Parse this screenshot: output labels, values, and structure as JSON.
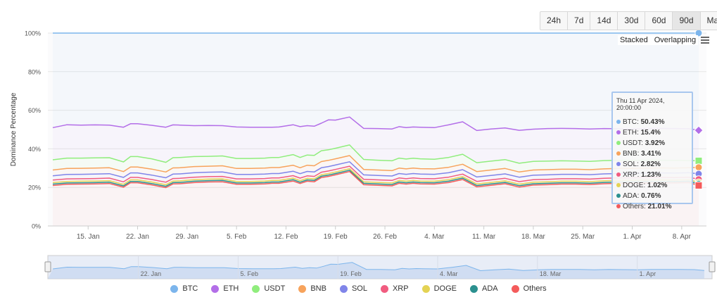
{
  "range_buttons": [
    {
      "label": "24h",
      "active": false
    },
    {
      "label": "7d",
      "active": false
    },
    {
      "label": "14d",
      "active": false
    },
    {
      "label": "30d",
      "active": false
    },
    {
      "label": "60d",
      "active": false
    },
    {
      "label": "90d",
      "active": true
    },
    {
      "label": "Max",
      "active": false
    }
  ],
  "mode_toggle": {
    "stacked": "Stacked",
    "overlapping": "Overlapping"
  },
  "tooltip": {
    "title": "Thu 11 Apr 2024, 20:00:00",
    "rows": [
      {
        "name": "BTC",
        "value": "50.43%"
      },
      {
        "name": "ETH",
        "value": "15.4%"
      },
      {
        "name": "USDT",
        "value": "3.92%"
      },
      {
        "name": "BNB",
        "value": "3.41%"
      },
      {
        "name": "SOL",
        "value": "2.82%"
      },
      {
        "name": "XRP",
        "value": "1.23%"
      },
      {
        "name": "DOGE",
        "value": "1.02%"
      },
      {
        "name": "ADA",
        "value": "0.76%"
      },
      {
        "name": "Others",
        "value": "21.01%"
      }
    ]
  },
  "chart_data": {
    "type": "area",
    "stacking": "percent",
    "ylabel": "Dominance Percentage",
    "ylim": [
      0,
      100
    ],
    "y_ticks": [
      "0%",
      "20%",
      "40%",
      "60%",
      "80%",
      "100%"
    ],
    "x_tick_labels": [
      "15. Jan",
      "22. Jan",
      "29. Jan",
      "5. Feb",
      "12. Feb",
      "19. Feb",
      "26. Feb",
      "4. Mar",
      "11. Mar",
      "18. Mar",
      "25. Mar",
      "1. Apr",
      "8. Apr"
    ],
    "x_tick_days": [
      14,
      21,
      28,
      35,
      42,
      49,
      56,
      63,
      70,
      77,
      84,
      91,
      98
    ],
    "x_range_days": [
      8.3,
      101.5
    ],
    "navigator_labels": [
      "22. Jan",
      "5. Feb",
      "19. Feb",
      "4. Mar",
      "18. Mar",
      "1. Apr"
    ],
    "navigator_label_days": [
      21,
      35,
      49,
      63,
      77,
      91
    ],
    "legend_position": "bottom",
    "x_days": [
      9,
      11,
      13,
      15,
      17,
      19,
      20,
      21,
      23,
      25,
      26,
      27,
      29,
      31,
      33,
      35,
      37,
      39,
      40,
      41,
      43,
      44,
      45,
      46,
      47,
      48,
      49,
      51,
      53,
      55,
      57,
      58,
      59,
      60,
      61,
      63,
      65,
      67,
      69,
      71,
      73,
      75,
      77,
      79,
      81,
      83,
      85,
      87,
      89,
      91,
      93,
      95,
      97,
      99,
      100.4
    ],
    "series": [
      {
        "name": "BTC",
        "color": "#7cb5ec",
        "values": [
          100,
          100,
          100,
          100,
          100,
          100,
          100,
          100,
          100,
          100,
          100,
          100,
          100,
          100,
          100,
          100,
          100,
          100,
          100,
          100,
          100,
          100,
          100,
          100,
          100,
          100,
          100,
          100,
          100,
          100,
          100,
          100,
          100,
          100,
          100,
          100,
          100,
          100,
          100,
          100,
          100,
          100,
          100,
          100,
          100,
          100,
          100,
          100,
          100,
          100,
          100,
          100,
          100,
          100,
          100
        ]
      },
      {
        "name": "ETH",
        "color": "#b36ee8",
        "values": [
          51,
          52.5,
          52.3,
          52.4,
          52.3,
          51.2,
          53,
          53,
          52.2,
          51.2,
          52.4,
          52.3,
          52,
          52.1,
          52,
          51.3,
          51.2,
          51.2,
          51.2,
          51.3,
          52.5,
          51.5,
          52,
          51.7,
          53.3,
          55,
          54.9,
          56.5,
          50.6,
          50.5,
          50.3,
          51.5,
          51,
          51.3,
          51.2,
          51,
          52.4,
          54,
          49.5,
          50.3,
          50.8,
          49.6,
          50.2,
          50.5,
          50.6,
          50.5,
          50.3,
          50.5,
          50.4,
          50.3,
          50.5,
          50.6,
          50.5,
          50.4,
          49.6
        ]
      },
      {
        "name": "USDT",
        "color": "#90ed7d",
        "values": [
          34.3,
          35.2,
          35.2,
          35.3,
          35.4,
          33.2,
          36,
          36,
          34.8,
          33,
          35.4,
          35.5,
          36,
          36.1,
          36.3,
          35,
          35,
          35.2,
          35.5,
          35.5,
          37,
          35.5,
          36.8,
          36.6,
          39,
          39.5,
          40.3,
          42,
          34.5,
          34.1,
          33.8,
          35.2,
          34.7,
          35.1,
          34.8,
          34.6,
          35.5,
          37.2,
          32.8,
          33.6,
          34.4,
          32.5,
          33.5,
          33.6,
          33.8,
          33.7,
          33.5,
          33.9,
          34,
          34,
          34.1,
          34.1,
          34,
          33.9,
          33.8
        ]
      },
      {
        "name": "BNB",
        "color": "#f7a35c",
        "values": [
          29,
          29.8,
          29.9,
          30,
          30.2,
          28.2,
          30.6,
          30.6,
          29.5,
          28,
          30.1,
          30.2,
          30.8,
          31,
          31.2,
          29.8,
          29.8,
          30,
          30.3,
          30.3,
          31.5,
          30.2,
          31.5,
          31.2,
          33.4,
          34,
          34.8,
          36.5,
          29.3,
          29,
          28.7,
          30,
          29.6,
          30,
          29.7,
          29.6,
          30.4,
          32,
          28.2,
          29,
          29.8,
          28,
          29,
          29.2,
          29.4,
          29.4,
          29.2,
          29.6,
          29.8,
          29.9,
          30,
          30.1,
          30,
          30.2,
          30.4
        ]
      },
      {
        "name": "SOL",
        "color": "#8085e9",
        "values": [
          26,
          26.7,
          26.8,
          26.9,
          27.1,
          25.2,
          27.5,
          27.5,
          26.4,
          25,
          26.9,
          27,
          27.6,
          27.9,
          28,
          26.7,
          26.7,
          26.9,
          27.2,
          27.2,
          28.4,
          27.1,
          28.3,
          28,
          30.2,
          30.8,
          31.6,
          33.3,
          26.5,
          26.2,
          25.9,
          27.2,
          26.8,
          27.2,
          26.9,
          26.8,
          27.6,
          29.2,
          25.4,
          26.2,
          27,
          25.3,
          26.3,
          26.5,
          26.8,
          26.8,
          26.6,
          27,
          27.2,
          27.3,
          27.4,
          27.5,
          27.4,
          27.6,
          27
        ]
      },
      {
        "name": "XRP",
        "color": "#f15c80",
        "values": [
          23.8,
          24.4,
          24.5,
          24.6,
          24.8,
          22.9,
          25.2,
          25.2,
          24.1,
          22.7,
          24.6,
          24.7,
          25.3,
          25.6,
          25.7,
          24.4,
          24.4,
          24.6,
          24.9,
          24.9,
          26.1,
          24.8,
          26,
          25.7,
          27.9,
          28.5,
          29.3,
          31,
          24.2,
          23.9,
          23.6,
          24.9,
          24.5,
          24.9,
          24.6,
          24.5,
          25.3,
          26.9,
          23.1,
          23.9,
          24.7,
          23,
          24,
          24.2,
          24.5,
          24.5,
          24.3,
          24.7,
          24.9,
          25,
          25.1,
          25.2,
          25.1,
          25.3,
          24.2
        ]
      },
      {
        "name": "DOGE",
        "color": "#e4d354",
        "values": [
          22.5,
          23.1,
          23.2,
          23.3,
          23.5,
          21.6,
          23.9,
          23.9,
          22.8,
          21.4,
          23.3,
          23.4,
          24,
          24.3,
          24.4,
          23.1,
          23.1,
          23.3,
          23.6,
          23.6,
          24.8,
          23.5,
          24.7,
          24.4,
          26.6,
          27.2,
          28,
          29.7,
          22.9,
          22.6,
          22.3,
          23.6,
          23.2,
          23.6,
          23.3,
          23.2,
          24,
          25.6,
          21.8,
          22.6,
          23.4,
          21.7,
          22.7,
          22.9,
          23.2,
          23.2,
          23,
          23.4,
          23.6,
          23.7,
          23.8,
          23.9,
          23.8,
          24,
          22.6
        ]
      },
      {
        "name": "ADA",
        "color": "#2b908f",
        "values": [
          21.7,
          22.3,
          22.4,
          22.5,
          22.7,
          20.8,
          23.1,
          23.1,
          22,
          20.6,
          22.5,
          22.6,
          23.2,
          23.5,
          23.6,
          22.3,
          22.3,
          22.5,
          22.8,
          22.8,
          24,
          22.7,
          23.9,
          23.6,
          25.8,
          26.4,
          27.2,
          28.9,
          22.1,
          21.8,
          21.5,
          22.8,
          22.4,
          22.8,
          22.5,
          22.4,
          23.2,
          24.8,
          21,
          21.8,
          22.6,
          20.9,
          21.9,
          22.1,
          22.4,
          22.4,
          22.2,
          22.6,
          22.8,
          22.9,
          23,
          23.1,
          23,
          23.2,
          21.8
        ]
      },
      {
        "name": "Others",
        "color": "#f45b5b",
        "values": [
          21,
          21.6,
          21.7,
          21.8,
          22,
          20.1,
          22.4,
          22.4,
          21.3,
          19.9,
          21.8,
          21.9,
          22.5,
          22.8,
          22.9,
          21.6,
          21.6,
          21.8,
          22.1,
          22.1,
          23.3,
          22,
          23.2,
          22.9,
          25.1,
          25.7,
          26.5,
          28.2,
          21.4,
          21.1,
          20.8,
          22.1,
          21.7,
          22.1,
          21.8,
          21.7,
          22.5,
          24.1,
          20.3,
          21.1,
          21.9,
          20.2,
          21.2,
          21.4,
          21.7,
          21.7,
          21.5,
          21.9,
          22.1,
          22.2,
          22.3,
          22.4,
          22.3,
          22.5,
          21
        ]
      }
    ]
  }
}
